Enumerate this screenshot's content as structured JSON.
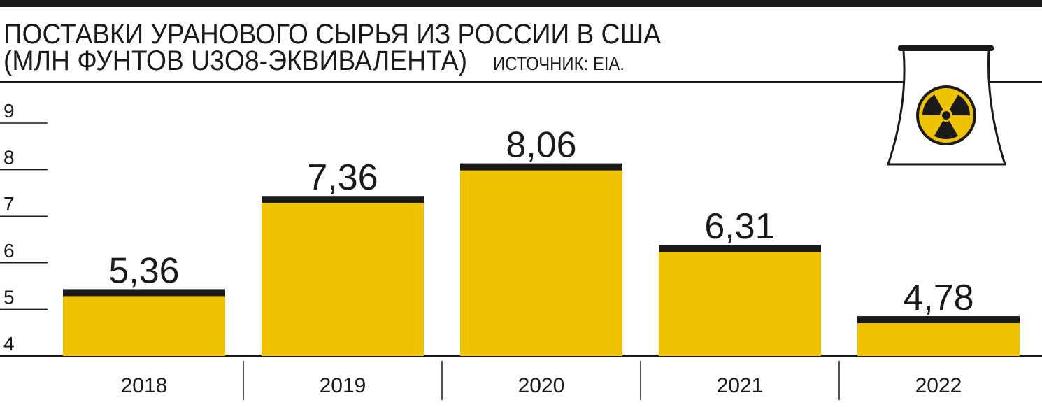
{
  "chart_data": {
    "type": "bar",
    "title": "ПОСТАВКИ УРАНОВОГО СЫРЬЯ ИЗ РОССИИ В США",
    "subtitle": "(МЛН ФУНТОВ U3O8-ЭКВИВАЛЕНТА)",
    "source": "ИСТОЧНИК: EIA.",
    "categories": [
      "2018",
      "2019",
      "2020",
      "2021",
      "2022"
    ],
    "values": [
      5.36,
      7.36,
      8.06,
      6.31,
      4.78
    ],
    "value_labels": [
      "5,36",
      "7,36",
      "8,06",
      "6,31",
      "4,78"
    ],
    "color": "#efc300",
    "cap_color": "#1a1a1a",
    "ylim": [
      4,
      9
    ],
    "yticks": [
      4,
      5,
      6,
      7,
      8,
      9
    ]
  }
}
